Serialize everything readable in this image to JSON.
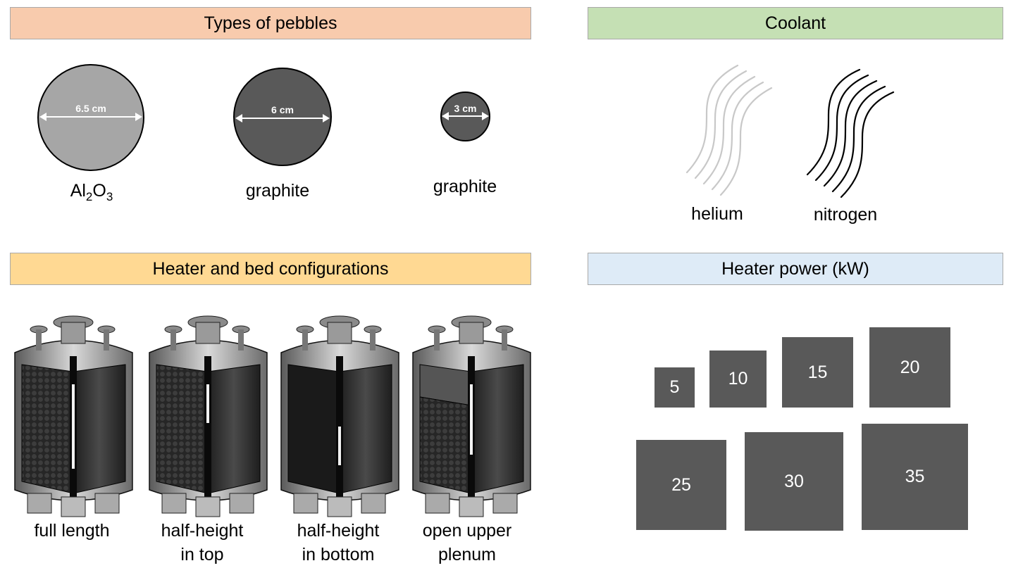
{
  "sections": {
    "pebbles": {
      "title": "Types of pebbles",
      "items": [
        {
          "dimension": "6.5 cm",
          "material_base": "Al",
          "sub1": "2",
          "mid": "O",
          "sub2": "3"
        },
        {
          "dimension": "6 cm",
          "material": "graphite"
        },
        {
          "dimension": "3 cm",
          "material": "graphite"
        }
      ]
    },
    "coolant": {
      "title": "Coolant",
      "items": [
        {
          "label": "helium",
          "color": "#c8c8c8"
        },
        {
          "label": "nitrogen",
          "color": "#000000"
        }
      ]
    },
    "configs": {
      "title": "Heater and bed configurations",
      "items": [
        {
          "line1": "full length",
          "line2": ""
        },
        {
          "line1": "half-height",
          "line2": "in top"
        },
        {
          "line1": "half-height",
          "line2": "in bottom"
        },
        {
          "line1": "open upper",
          "line2": "plenum"
        }
      ]
    },
    "power": {
      "title": "Heater power (kW)",
      "values": [
        "5",
        "10",
        "15",
        "20",
        "25",
        "30",
        "35"
      ]
    }
  },
  "colors": {
    "pebbles_header": "#f8cbad",
    "coolant_header": "#c5e0b4",
    "configs_header": "#ffd993",
    "power_header": "#deebf7",
    "alumina": "#a6a6a6",
    "graphite": "#595959",
    "power_box": "#595959"
  }
}
